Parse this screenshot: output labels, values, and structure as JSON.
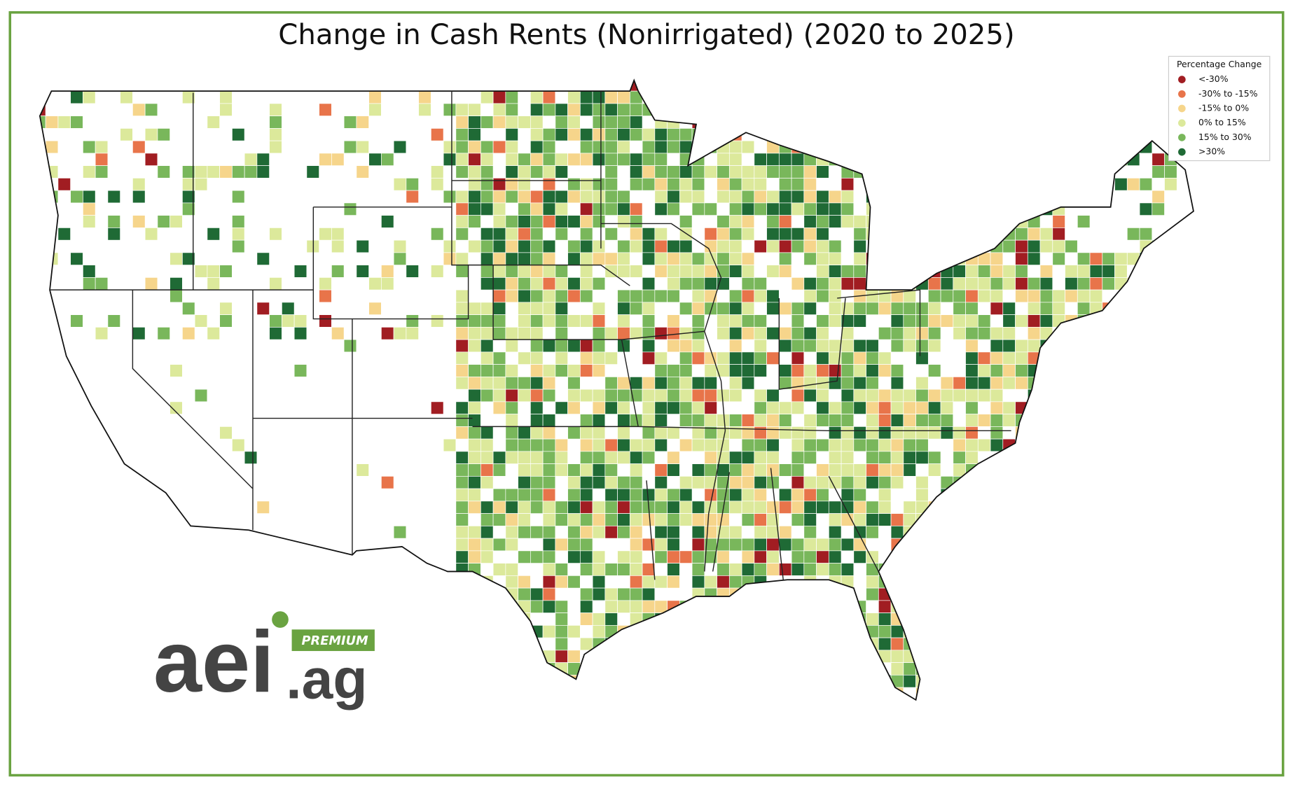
{
  "title": "Change in Cash Rents (Nonirrigated) (2020 to 2025)",
  "legend": {
    "title": "Percentage Change",
    "items": [
      {
        "label": "<-30%",
        "color": "#a11d22"
      },
      {
        "label": "-30% to -15%",
        "color": "#e8744a"
      },
      {
        "label": "-15% to 0%",
        "color": "#f6d58b"
      },
      {
        "label": "0% to 15%",
        "color": "#dce99b"
      },
      {
        "label": "15% to 30%",
        "color": "#79b75b"
      },
      {
        "label": ">30%",
        "color": "#1f6a35"
      }
    ]
  },
  "logo": {
    "name": "aei",
    "domain": ".ag",
    "badge": "PREMIUM"
  }
}
